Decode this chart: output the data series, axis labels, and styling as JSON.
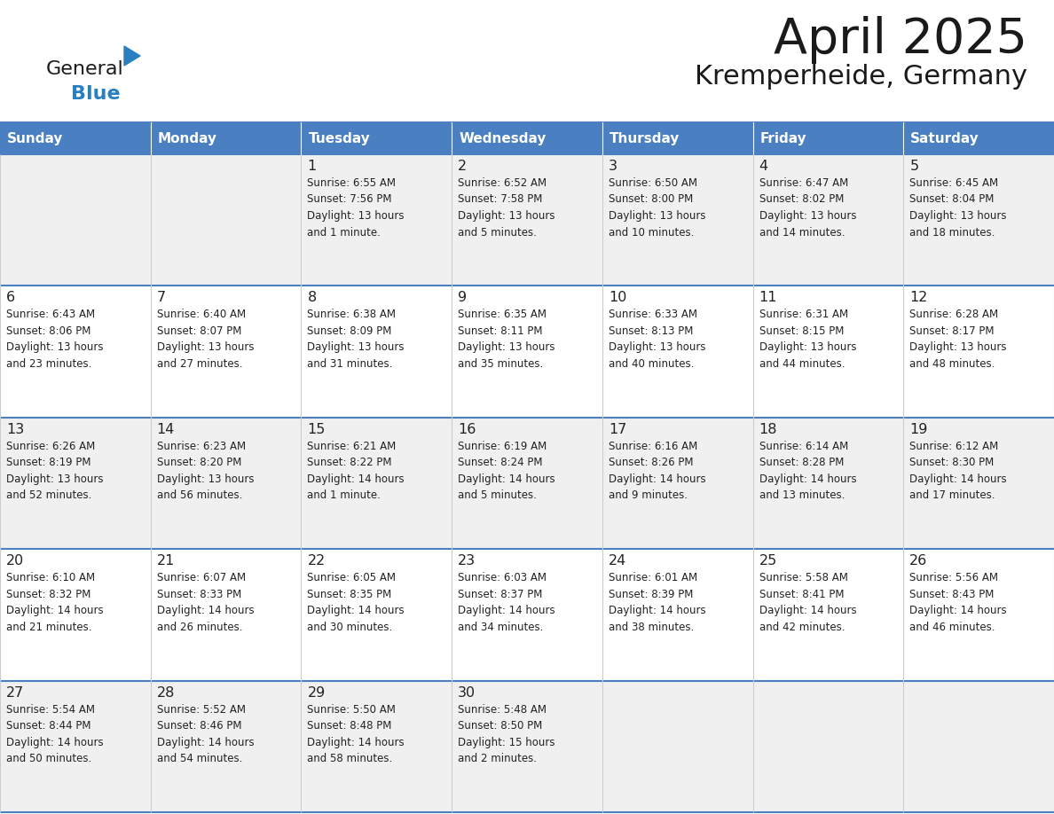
{
  "title": "April 2025",
  "subtitle": "Kremperheide, Germany",
  "header_color": "#4a7fc1",
  "header_text_color": "#FFFFFF",
  "cell_bg_white": "#FFFFFF",
  "cell_bg_gray": "#F0F0F0",
  "day_headers": [
    "Sunday",
    "Monday",
    "Tuesday",
    "Wednesday",
    "Thursday",
    "Friday",
    "Saturday"
  ],
  "weeks": [
    [
      {
        "day": "",
        "info": ""
      },
      {
        "day": "",
        "info": ""
      },
      {
        "day": "1",
        "info": "Sunrise: 6:55 AM\nSunset: 7:56 PM\nDaylight: 13 hours\nand 1 minute."
      },
      {
        "day": "2",
        "info": "Sunrise: 6:52 AM\nSunset: 7:58 PM\nDaylight: 13 hours\nand 5 minutes."
      },
      {
        "day": "3",
        "info": "Sunrise: 6:50 AM\nSunset: 8:00 PM\nDaylight: 13 hours\nand 10 minutes."
      },
      {
        "day": "4",
        "info": "Sunrise: 6:47 AM\nSunset: 8:02 PM\nDaylight: 13 hours\nand 14 minutes."
      },
      {
        "day": "5",
        "info": "Sunrise: 6:45 AM\nSunset: 8:04 PM\nDaylight: 13 hours\nand 18 minutes."
      }
    ],
    [
      {
        "day": "6",
        "info": "Sunrise: 6:43 AM\nSunset: 8:06 PM\nDaylight: 13 hours\nand 23 minutes."
      },
      {
        "day": "7",
        "info": "Sunrise: 6:40 AM\nSunset: 8:07 PM\nDaylight: 13 hours\nand 27 minutes."
      },
      {
        "day": "8",
        "info": "Sunrise: 6:38 AM\nSunset: 8:09 PM\nDaylight: 13 hours\nand 31 minutes."
      },
      {
        "day": "9",
        "info": "Sunrise: 6:35 AM\nSunset: 8:11 PM\nDaylight: 13 hours\nand 35 minutes."
      },
      {
        "day": "10",
        "info": "Sunrise: 6:33 AM\nSunset: 8:13 PM\nDaylight: 13 hours\nand 40 minutes."
      },
      {
        "day": "11",
        "info": "Sunrise: 6:31 AM\nSunset: 8:15 PM\nDaylight: 13 hours\nand 44 minutes."
      },
      {
        "day": "12",
        "info": "Sunrise: 6:28 AM\nSunset: 8:17 PM\nDaylight: 13 hours\nand 48 minutes."
      }
    ],
    [
      {
        "day": "13",
        "info": "Sunrise: 6:26 AM\nSunset: 8:19 PM\nDaylight: 13 hours\nand 52 minutes."
      },
      {
        "day": "14",
        "info": "Sunrise: 6:23 AM\nSunset: 8:20 PM\nDaylight: 13 hours\nand 56 minutes."
      },
      {
        "day": "15",
        "info": "Sunrise: 6:21 AM\nSunset: 8:22 PM\nDaylight: 14 hours\nand 1 minute."
      },
      {
        "day": "16",
        "info": "Sunrise: 6:19 AM\nSunset: 8:24 PM\nDaylight: 14 hours\nand 5 minutes."
      },
      {
        "day": "17",
        "info": "Sunrise: 6:16 AM\nSunset: 8:26 PM\nDaylight: 14 hours\nand 9 minutes."
      },
      {
        "day": "18",
        "info": "Sunrise: 6:14 AM\nSunset: 8:28 PM\nDaylight: 14 hours\nand 13 minutes."
      },
      {
        "day": "19",
        "info": "Sunrise: 6:12 AM\nSunset: 8:30 PM\nDaylight: 14 hours\nand 17 minutes."
      }
    ],
    [
      {
        "day": "20",
        "info": "Sunrise: 6:10 AM\nSunset: 8:32 PM\nDaylight: 14 hours\nand 21 minutes."
      },
      {
        "day": "21",
        "info": "Sunrise: 6:07 AM\nSunset: 8:33 PM\nDaylight: 14 hours\nand 26 minutes."
      },
      {
        "day": "22",
        "info": "Sunrise: 6:05 AM\nSunset: 8:35 PM\nDaylight: 14 hours\nand 30 minutes."
      },
      {
        "day": "23",
        "info": "Sunrise: 6:03 AM\nSunset: 8:37 PM\nDaylight: 14 hours\nand 34 minutes."
      },
      {
        "day": "24",
        "info": "Sunrise: 6:01 AM\nSunset: 8:39 PM\nDaylight: 14 hours\nand 38 minutes."
      },
      {
        "day": "25",
        "info": "Sunrise: 5:58 AM\nSunset: 8:41 PM\nDaylight: 14 hours\nand 42 minutes."
      },
      {
        "day": "26",
        "info": "Sunrise: 5:56 AM\nSunset: 8:43 PM\nDaylight: 14 hours\nand 46 minutes."
      }
    ],
    [
      {
        "day": "27",
        "info": "Sunrise: 5:54 AM\nSunset: 8:44 PM\nDaylight: 14 hours\nand 50 minutes."
      },
      {
        "day": "28",
        "info": "Sunrise: 5:52 AM\nSunset: 8:46 PM\nDaylight: 14 hours\nand 54 minutes."
      },
      {
        "day": "29",
        "info": "Sunrise: 5:50 AM\nSunset: 8:48 PM\nDaylight: 14 hours\nand 58 minutes."
      },
      {
        "day": "30",
        "info": "Sunrise: 5:48 AM\nSunset: 8:50 PM\nDaylight: 15 hours\nand 2 minutes."
      },
      {
        "day": "",
        "info": ""
      },
      {
        "day": "",
        "info": ""
      },
      {
        "day": "",
        "info": ""
      }
    ]
  ],
  "logo_color_general": "#1a1a1a",
  "logo_color_blue": "#2a7fc0",
  "logo_triangle_color": "#2a7fc0",
  "title_color": "#1a1a1a",
  "subtitle_color": "#1a1a1a",
  "cell_text_color": "#222222",
  "grid_line_color": "#4a7fc1",
  "cell_line_color": "#cccccc"
}
